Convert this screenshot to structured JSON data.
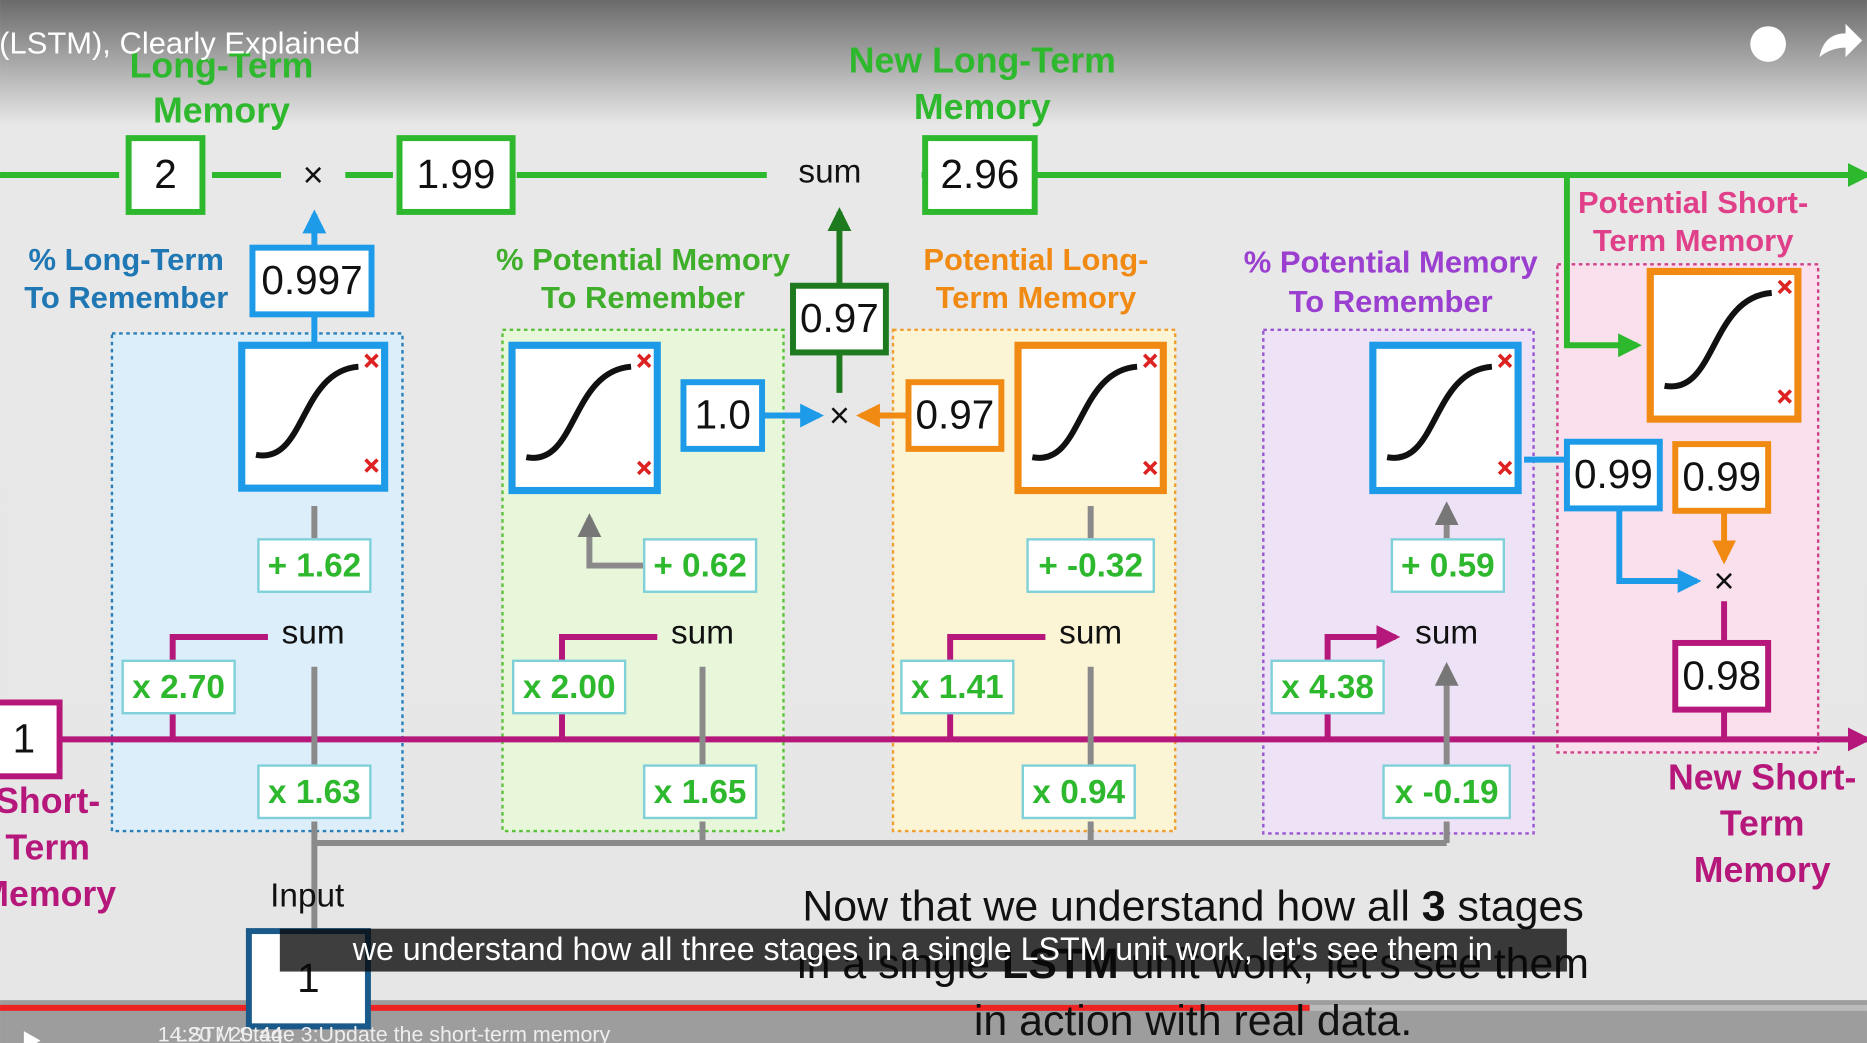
{
  "player": {
    "title": "Long Short-Term Memory (LSTM), Clearly Explained",
    "time": "14:20 / 20:44",
    "chapter": "LSTM Stage 3:Update the short-term memory",
    "subtitle": "we understand how all three stages in a single LSTM unit work, let's see them in"
  },
  "diagram": {
    "long_term_label": [
      "Long-Term",
      "Memory"
    ],
    "long_term_value": "2",
    "forget_product": "1.99",
    "new_long_term_label": [
      "New Long-Term",
      "Memory"
    ],
    "new_long_term_value": "2.96",
    "sum": "sum",
    "multiply": "×",
    "input_label": "Input",
    "input_value": "1",
    "short_term_label": [
      "Short-",
      "Term",
      "Memory"
    ],
    "short_term_value": "1",
    "stage1": {
      "label": [
        "% Long-Term",
        "To Remember"
      ],
      "output": "0.997",
      "bias": "+ 1.62",
      "short_weight": "x 2.70",
      "input_weight": "x 1.63"
    },
    "stage2a": {
      "label": [
        "% Potential Memory",
        "To Remember"
      ],
      "output": "1.0",
      "bias": "+ 0.62",
      "short_weight": "x 2.00",
      "input_weight": "x 1.65"
    },
    "stage2_product": "0.97",
    "stage2b": {
      "label": [
        "Potential Long-",
        "Term Memory"
      ],
      "output": "0.97",
      "bias": "+ -0.32",
      "short_weight": "x 1.41",
      "input_weight": "x 0.94"
    },
    "stage3": {
      "label": [
        "% Potential Memory",
        "To Remember"
      ],
      "output": "0.99",
      "bias": "+ 0.59",
      "short_weight": "x 4.38",
      "input_weight": "x -0.19"
    },
    "potential_short": {
      "label": [
        "Potential Short-",
        "Term Memory"
      ],
      "output": "0.99"
    },
    "new_short_term_label": [
      "New Short-",
      "Term",
      "Memory"
    ],
    "new_short_term_value": "0.98"
  },
  "slide_caption": [
    [
      {
        "text": "Now that we understand how all ",
        "bold": false
      },
      {
        "text": "3",
        "bold": true
      },
      {
        "text": " stages",
        "bold": false
      }
    ],
    [
      {
        "text": "in a single ",
        "bold": false
      },
      {
        "text": "LSTM",
        "bold": true
      },
      {
        "text": " unit work, let's see them",
        "bold": false
      }
    ],
    [
      {
        "text": "in action with real data.",
        "bold": false
      }
    ]
  ]
}
